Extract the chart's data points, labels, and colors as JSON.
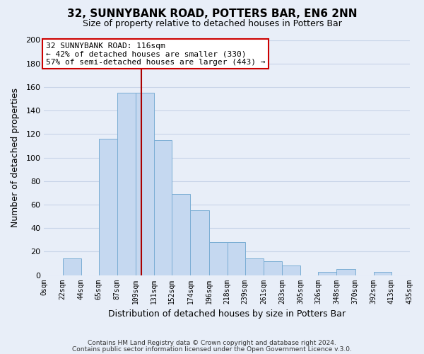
{
  "title": "32, SUNNYBANK ROAD, POTTERS BAR, EN6 2NN",
  "subtitle": "Size of property relative to detached houses in Potters Bar",
  "xlabel": "Distribution of detached houses by size in Potters Bar",
  "ylabel": "Number of detached properties",
  "bar_edges": [
    0,
    22,
    44,
    65,
    87,
    109,
    131,
    152,
    174,
    196,
    218,
    239,
    261,
    283,
    305,
    326,
    348,
    370,
    392,
    413,
    435
  ],
  "bar_heights": [
    0,
    14,
    0,
    116,
    155,
    155,
    115,
    69,
    55,
    28,
    28,
    14,
    12,
    8,
    0,
    3,
    5,
    0,
    3,
    0
  ],
  "bar_color": "#c5d8f0",
  "bar_edge_color": "#7aadd4",
  "tick_labels": [
    "0sqm",
    "22sqm",
    "44sqm",
    "65sqm",
    "87sqm",
    "109sqm",
    "131sqm",
    "152sqm",
    "174sqm",
    "196sqm",
    "218sqm",
    "239sqm",
    "261sqm",
    "283sqm",
    "305sqm",
    "326sqm",
    "348sqm",
    "370sqm",
    "392sqm",
    "413sqm",
    "435sqm"
  ],
  "vline_x": 116,
  "vline_color": "#aa0000",
  "annotation_title": "32 SUNNYBANK ROAD: 116sqm",
  "annotation_line1": "← 42% of detached houses are smaller (330)",
  "annotation_line2": "57% of semi-detached houses are larger (443) →",
  "ylim": [
    0,
    200
  ],
  "yticks": [
    0,
    20,
    40,
    60,
    80,
    100,
    120,
    140,
    160,
    180,
    200
  ],
  "footer1": "Contains HM Land Registry data © Crown copyright and database right 2024.",
  "footer2": "Contains public sector information licensed under the Open Government Licence v.3.0.",
  "background_color": "#e8eef8",
  "grid_color": "#d0d8e8"
}
